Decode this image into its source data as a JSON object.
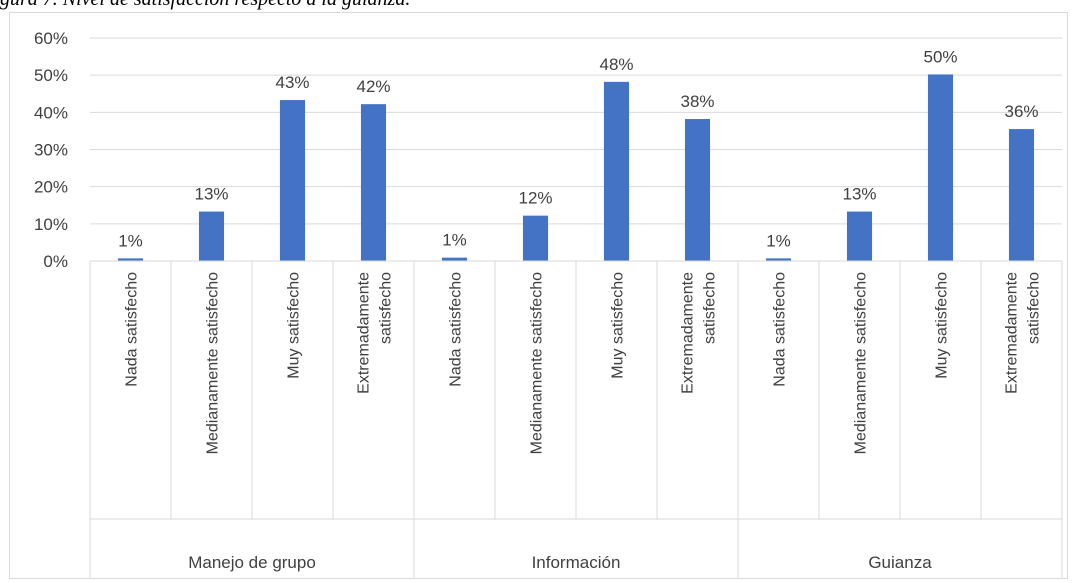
{
  "caption": "gura 7. Nivel de satisfacción respecto a la guianza.",
  "chart_data": {
    "type": "bar",
    "title": "",
    "xlabel": "",
    "ylabel": "",
    "ylim": [
      0,
      0.6
    ],
    "yticks": [
      "0%",
      "10%",
      "20%",
      "30%",
      "40%",
      "50%",
      "60%"
    ],
    "grid": true,
    "legend": "none",
    "bar_color": "#4472C4",
    "groups": [
      {
        "name": "Manejo de grupo",
        "categories": [
          "Nada satisfecho",
          "Medianamente satisfecho",
          "Muy satisfecho",
          [
            "Extremadamente",
            "satisfecho"
          ]
        ],
        "values": [
          0.007,
          0.133,
          0.433,
          0.422
        ],
        "labels": [
          "1%",
          "13%",
          "43%",
          "42%"
        ]
      },
      {
        "name": "Información",
        "categories": [
          "Nada satisfecho",
          "Medianamente satisfecho",
          "Muy satisfecho",
          [
            "Extremadamente",
            "satisfecho"
          ]
        ],
        "values": [
          0.009,
          0.122,
          0.482,
          0.382
        ],
        "labels": [
          "1%",
          "12%",
          "48%",
          "38%"
        ]
      },
      {
        "name": "Guianza",
        "categories": [
          "Nada satisfecho",
          "Medianamente satisfecho",
          "Muy satisfecho",
          [
            "Extremadamente",
            "satisfecho"
          ]
        ],
        "values": [
          0.007,
          0.133,
          0.502,
          0.355
        ],
        "labels": [
          "1%",
          "13%",
          "50%",
          "36%"
        ]
      }
    ]
  }
}
